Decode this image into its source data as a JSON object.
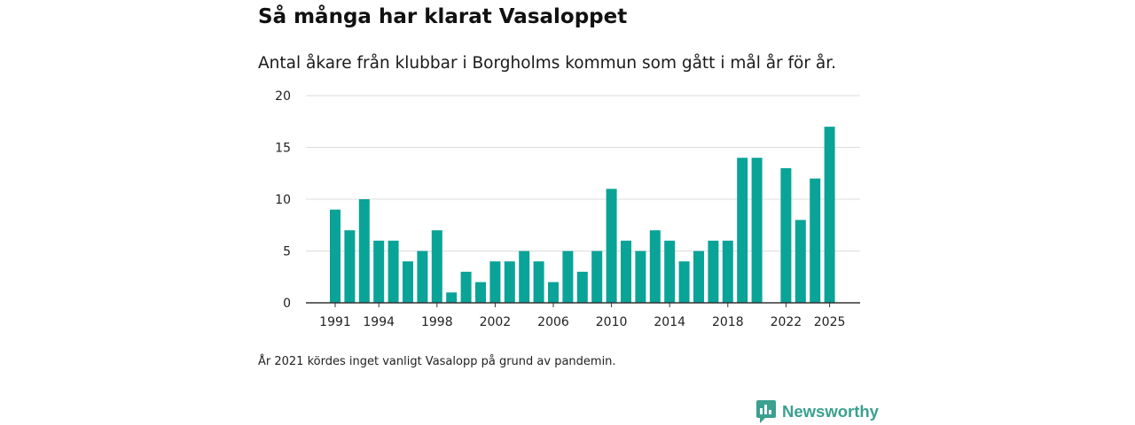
{
  "chart_data": {
    "type": "bar",
    "title": "Så många har klarat Vasaloppet",
    "subtitle": "Antal åkare från klubbar i Borgholms kommun som gått i mål år för år.",
    "years": [
      1991,
      1992,
      1993,
      1994,
      1995,
      1996,
      1997,
      1998,
      1999,
      2000,
      2001,
      2002,
      2003,
      2004,
      2005,
      2006,
      2007,
      2008,
      2009,
      2010,
      2011,
      2012,
      2013,
      2014,
      2015,
      2016,
      2017,
      2018,
      2019,
      2020,
      2021,
      2022,
      2023,
      2024,
      2025
    ],
    "values": [
      9,
      7,
      10,
      6,
      6,
      4,
      5,
      7,
      1,
      3,
      2,
      4,
      4,
      5,
      4,
      2,
      5,
      3,
      5,
      11,
      6,
      5,
      7,
      6,
      4,
      5,
      6,
      6,
      14,
      14,
      null,
      13,
      8,
      12,
      17
    ],
    "x_tick_labels": [
      "1991",
      "1994",
      "1998",
      "2002",
      "2006",
      "2010",
      "2014",
      "2018",
      "2022",
      "2025"
    ],
    "y_ticks": [
      0,
      5,
      10,
      15,
      20
    ],
    "ylim": [
      0,
      20
    ],
    "bar_color": "#0aa398",
    "grid": true,
    "xlabel": "",
    "ylabel": ""
  },
  "footnote": "År 2021 kördes inget vanligt Vasalopp på grund av pandemin.",
  "brand": {
    "name": "Newsworthy",
    "icon": "newsworthy-logo-icon",
    "color": "#3aa090"
  }
}
